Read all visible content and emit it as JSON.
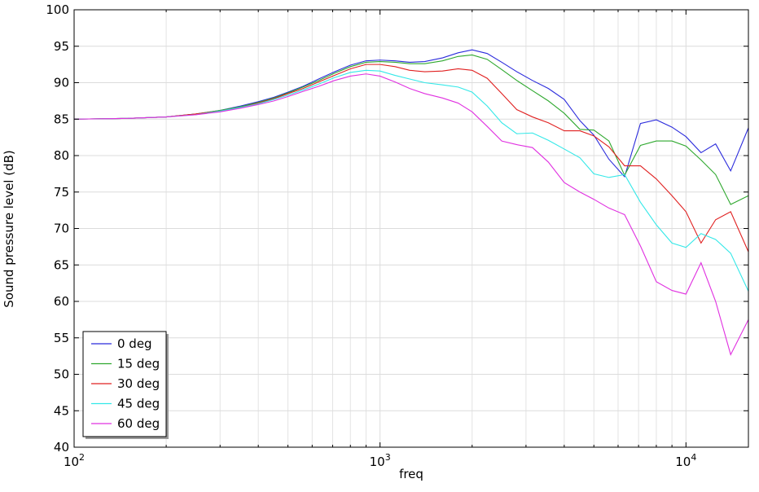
{
  "chart_data": {
    "type": "line",
    "title": "",
    "xlabel": "freq",
    "ylabel": "Sound pressure level (dB)",
    "xscale": "log",
    "xlim": [
      100,
      16000
    ],
    "ylim": [
      40,
      100
    ],
    "grid": true,
    "legend_position": "bottom-left",
    "x_tick_labels": [
      {
        "value": 100,
        "base": "10",
        "exp": "2"
      },
      {
        "value": 1000,
        "base": "10",
        "exp": "3"
      },
      {
        "value": 10000,
        "base": "10",
        "exp": "4"
      }
    ],
    "y_ticks": [
      40,
      45,
      50,
      55,
      60,
      65,
      70,
      75,
      80,
      85,
      90,
      95,
      100
    ],
    "series": [
      {
        "name": "0 deg",
        "color": "#2b2bdc",
        "points": [
          [
            100,
            85.0
          ],
          [
            150,
            85.1
          ],
          [
            200,
            85.3
          ],
          [
            250,
            85.7
          ],
          [
            300,
            86.2
          ],
          [
            350,
            86.8
          ],
          [
            400,
            87.4
          ],
          [
            450,
            88.0
          ],
          [
            500,
            88.7
          ],
          [
            560,
            89.5
          ],
          [
            630,
            90.5
          ],
          [
            710,
            91.5
          ],
          [
            800,
            92.4
          ],
          [
            900,
            93.0
          ],
          [
            1000,
            93.1
          ],
          [
            1120,
            93.0
          ],
          [
            1250,
            92.8
          ],
          [
            1400,
            92.9
          ],
          [
            1600,
            93.4
          ],
          [
            1800,
            94.1
          ],
          [
            2000,
            94.5
          ],
          [
            2240,
            94.0
          ],
          [
            2500,
            92.8
          ],
          [
            2800,
            91.5
          ],
          [
            3150,
            90.3
          ],
          [
            3550,
            89.2
          ],
          [
            4000,
            87.7
          ],
          [
            4500,
            84.8
          ],
          [
            5000,
            82.8
          ],
          [
            5600,
            79.5
          ],
          [
            6300,
            77.1
          ],
          [
            7100,
            84.4
          ],
          [
            8000,
            84.9
          ],
          [
            9000,
            83.9
          ],
          [
            10000,
            82.6
          ],
          [
            11200,
            80.4
          ],
          [
            12500,
            81.6
          ],
          [
            14000,
            77.9
          ],
          [
            16000,
            83.8
          ]
        ]
      },
      {
        "name": "15 deg",
        "color": "#2ea82e",
        "points": [
          [
            100,
            85.0
          ],
          [
            150,
            85.1
          ],
          [
            200,
            85.3
          ],
          [
            250,
            85.7
          ],
          [
            300,
            86.2
          ],
          [
            350,
            86.7
          ],
          [
            400,
            87.3
          ],
          [
            450,
            87.9
          ],
          [
            500,
            88.6
          ],
          [
            560,
            89.4
          ],
          [
            630,
            90.3
          ],
          [
            710,
            91.3
          ],
          [
            800,
            92.2
          ],
          [
            900,
            92.8
          ],
          [
            1000,
            92.9
          ],
          [
            1120,
            92.8
          ],
          [
            1250,
            92.6
          ],
          [
            1400,
            92.6
          ],
          [
            1600,
            93.0
          ],
          [
            1800,
            93.6
          ],
          [
            2000,
            93.8
          ],
          [
            2240,
            93.2
          ],
          [
            2500,
            91.8
          ],
          [
            2800,
            90.3
          ],
          [
            3150,
            88.9
          ],
          [
            3550,
            87.5
          ],
          [
            4000,
            85.8
          ],
          [
            4500,
            83.6
          ],
          [
            5000,
            83.5
          ],
          [
            5600,
            82.0
          ],
          [
            6300,
            77.3
          ],
          [
            7100,
            81.4
          ],
          [
            8000,
            82.0
          ],
          [
            9000,
            82.0
          ],
          [
            10000,
            81.3
          ],
          [
            11200,
            79.4
          ],
          [
            12500,
            77.4
          ],
          [
            14000,
            73.3
          ],
          [
            16000,
            74.5
          ]
        ]
      },
      {
        "name": "30 deg",
        "color": "#e02020",
        "points": [
          [
            100,
            85.0
          ],
          [
            150,
            85.1
          ],
          [
            200,
            85.3
          ],
          [
            250,
            85.7
          ],
          [
            300,
            86.1
          ],
          [
            350,
            86.6
          ],
          [
            400,
            87.2
          ],
          [
            450,
            87.8
          ],
          [
            500,
            88.5
          ],
          [
            560,
            89.2
          ],
          [
            630,
            90.1
          ],
          [
            710,
            91.0
          ],
          [
            800,
            91.9
          ],
          [
            900,
            92.5
          ],
          [
            1000,
            92.5
          ],
          [
            1120,
            92.2
          ],
          [
            1250,
            91.7
          ],
          [
            1400,
            91.5
          ],
          [
            1600,
            91.6
          ],
          [
            1800,
            91.9
          ],
          [
            2000,
            91.7
          ],
          [
            2240,
            90.6
          ],
          [
            2500,
            88.5
          ],
          [
            2800,
            86.3
          ],
          [
            3150,
            85.3
          ],
          [
            3550,
            84.5
          ],
          [
            4000,
            83.4
          ],
          [
            4500,
            83.4
          ],
          [
            5000,
            82.7
          ],
          [
            5600,
            81.2
          ],
          [
            6300,
            78.6
          ],
          [
            7100,
            78.6
          ],
          [
            8000,
            76.8
          ],
          [
            9000,
            74.5
          ],
          [
            10000,
            72.3
          ],
          [
            11200,
            68.0
          ],
          [
            12500,
            71.2
          ],
          [
            14000,
            72.3
          ],
          [
            16000,
            66.8
          ]
        ]
      },
      {
        "name": "45 deg",
        "color": "#33e8e8",
        "points": [
          [
            100,
            85.0
          ],
          [
            150,
            85.1
          ],
          [
            200,
            85.3
          ],
          [
            250,
            85.6
          ],
          [
            300,
            86.1
          ],
          [
            350,
            86.6
          ],
          [
            400,
            87.1
          ],
          [
            450,
            87.7
          ],
          [
            500,
            88.3
          ],
          [
            560,
            89.0
          ],
          [
            630,
            89.8
          ],
          [
            710,
            90.7
          ],
          [
            800,
            91.4
          ],
          [
            900,
            91.7
          ],
          [
            1000,
            91.6
          ],
          [
            1120,
            91.0
          ],
          [
            1250,
            90.5
          ],
          [
            1400,
            90.0
          ],
          [
            1600,
            89.7
          ],
          [
            1800,
            89.4
          ],
          [
            2000,
            88.7
          ],
          [
            2240,
            86.8
          ],
          [
            2500,
            84.5
          ],
          [
            2800,
            83.0
          ],
          [
            3150,
            83.1
          ],
          [
            3550,
            82.1
          ],
          [
            4000,
            80.9
          ],
          [
            4500,
            79.7
          ],
          [
            5000,
            77.5
          ],
          [
            5600,
            77.0
          ],
          [
            6300,
            77.4
          ],
          [
            7100,
            73.6
          ],
          [
            8000,
            70.5
          ],
          [
            9000,
            68.0
          ],
          [
            10000,
            67.4
          ],
          [
            11200,
            69.3
          ],
          [
            12500,
            68.5
          ],
          [
            14000,
            66.6
          ],
          [
            16000,
            61.4
          ]
        ]
      },
      {
        "name": "60 deg",
        "color": "#e030e0",
        "points": [
          [
            100,
            85.0
          ],
          [
            150,
            85.1
          ],
          [
            200,
            85.3
          ],
          [
            250,
            85.6
          ],
          [
            300,
            86.0
          ],
          [
            350,
            86.5
          ],
          [
            400,
            87.0
          ],
          [
            450,
            87.5
          ],
          [
            500,
            88.1
          ],
          [
            560,
            88.8
          ],
          [
            630,
            89.5
          ],
          [
            710,
            90.3
          ],
          [
            800,
            90.9
          ],
          [
            900,
            91.2
          ],
          [
            1000,
            90.9
          ],
          [
            1120,
            90.1
          ],
          [
            1250,
            89.2
          ],
          [
            1400,
            88.5
          ],
          [
            1600,
            87.9
          ],
          [
            1800,
            87.2
          ],
          [
            2000,
            86.0
          ],
          [
            2240,
            84.0
          ],
          [
            2500,
            82.0
          ],
          [
            2800,
            81.5
          ],
          [
            3150,
            81.1
          ],
          [
            3550,
            79.1
          ],
          [
            4000,
            76.3
          ],
          [
            4500,
            75.0
          ],
          [
            5000,
            74.0
          ],
          [
            5600,
            72.8
          ],
          [
            6300,
            71.9
          ],
          [
            7100,
            67.6
          ],
          [
            8000,
            62.7
          ],
          [
            9000,
            61.5
          ],
          [
            10000,
            61.0
          ],
          [
            11200,
            65.3
          ],
          [
            12500,
            60.0
          ],
          [
            14000,
            52.7
          ],
          [
            16000,
            57.5
          ]
        ]
      }
    ]
  }
}
